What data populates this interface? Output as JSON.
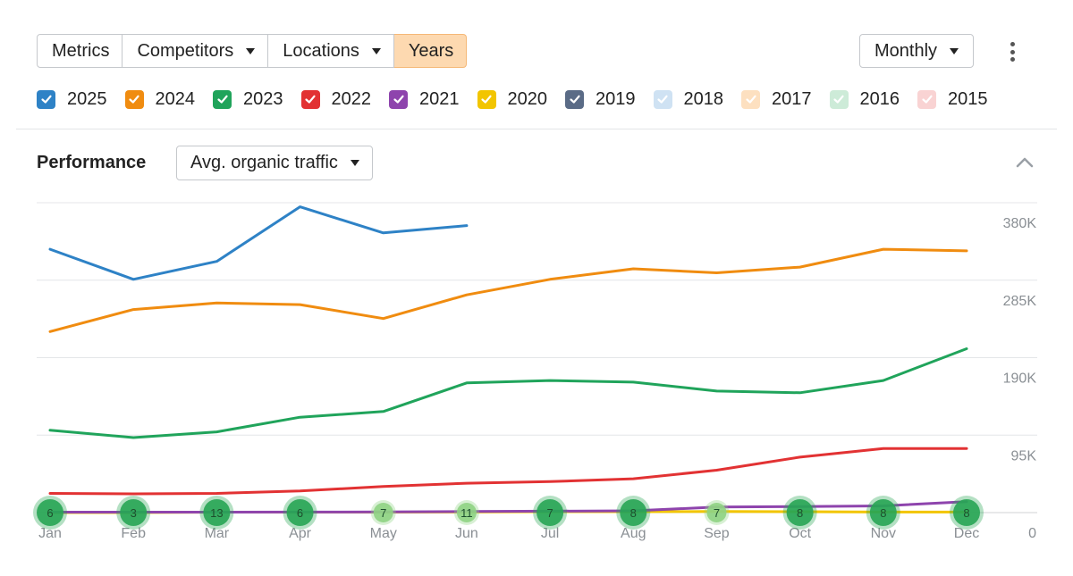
{
  "toolbar": {
    "tabs": [
      {
        "label": "Metrics",
        "dropdown": false,
        "active": false
      },
      {
        "label": "Competitors",
        "dropdown": true,
        "active": false
      },
      {
        "label": "Locations",
        "dropdown": true,
        "active": false
      },
      {
        "label": "Years",
        "dropdown": false,
        "active": true
      }
    ],
    "granularity": "Monthly",
    "more_icon": "kebab-menu-icon"
  },
  "legend": [
    {
      "label": "2025",
      "color": "#2e82c6",
      "checked": true,
      "muted": false
    },
    {
      "label": "2024",
      "color": "#f08c10",
      "checked": true,
      "muted": false
    },
    {
      "label": "2023",
      "color": "#20a45b",
      "checked": true,
      "muted": false
    },
    {
      "label": "2022",
      "color": "#e23233",
      "checked": true,
      "muted": false
    },
    {
      "label": "2021",
      "color": "#8e44ad",
      "checked": true,
      "muted": false
    },
    {
      "label": "2020",
      "color": "#f2c500",
      "checked": true,
      "muted": false
    },
    {
      "label": "2019",
      "color": "#5a6b86",
      "checked": true,
      "muted": false
    },
    {
      "label": "2018",
      "color": "#cfe2f3",
      "checked": false,
      "muted": true
    },
    {
      "label": "2017",
      "color": "#fde0c0",
      "checked": false,
      "muted": true
    },
    {
      "label": "2016",
      "color": "#cdebd8",
      "checked": false,
      "muted": true
    },
    {
      "label": "2015",
      "color": "#f9d3d3",
      "checked": false,
      "muted": true
    }
  ],
  "performance": {
    "title": "Performance",
    "metric": "Avg. organic traffic",
    "collapse_icon": "chevron-up-icon"
  },
  "chart_data": {
    "type": "line",
    "categories": [
      "Jan",
      "Feb",
      "Mar",
      "Apr",
      "May",
      "Jun",
      "Jul",
      "Aug",
      "Sep",
      "Oct",
      "Nov",
      "Dec"
    ],
    "y_ticks": [
      {
        "value": 0,
        "label": "0"
      },
      {
        "value": 95000,
        "label": "95K"
      },
      {
        "value": 190000,
        "label": "190K"
      },
      {
        "value": 285000,
        "label": "285K"
      },
      {
        "value": 380000,
        "label": "380K"
      }
    ],
    "ylim": [
      0,
      380000
    ],
    "grid": true,
    "series": [
      {
        "name": "2025",
        "color": "#2e82c6",
        "values": [
          323000,
          286000,
          308000,
          375000,
          343000,
          352000,
          null,
          null,
          null,
          null,
          null,
          null
        ]
      },
      {
        "name": "2024",
        "color": "#f08c10",
        "values": [
          222000,
          249000,
          257000,
          255000,
          238000,
          267000,
          286000,
          299000,
          294000,
          301000,
          323000,
          321000
        ]
      },
      {
        "name": "2023",
        "color": "#20a45b",
        "values": [
          101000,
          92000,
          99000,
          117000,
          124000,
          159000,
          162000,
          160000,
          149000,
          147000,
          162000,
          201000
        ]
      },
      {
        "name": "2022",
        "color": "#e23233",
        "values": [
          23500,
          23000,
          23500,
          26500,
          32000,
          36000,
          38000,
          41500,
          52000,
          68000,
          78500,
          78500
        ]
      },
      {
        "name": "2021",
        "color": "#8e44ad",
        "values": [
          600,
          600,
          600,
          700,
          800,
          1300,
          1700,
          2200,
          6800,
          7500,
          8200,
          13500
        ]
      },
      {
        "name": "2020",
        "color": "#f2c500",
        "values": [
          0,
          0,
          500,
          500,
          600,
          700,
          1100,
          1100,
          1400,
          1100,
          700,
          700
        ]
      }
    ],
    "annotations": [
      {
        "x": "Jan",
        "count": "6",
        "color": "#27a554"
      },
      {
        "x": "Feb",
        "count": "3",
        "color": "#27a554"
      },
      {
        "x": "Mar",
        "count": "13",
        "color": "#27a554"
      },
      {
        "x": "Apr",
        "count": "6",
        "color": "#27a554"
      },
      {
        "x": "May",
        "count": "7",
        "color": "#8fd383"
      },
      {
        "x": "Jun",
        "count": "11",
        "color": "#8fd383"
      },
      {
        "x": "Jul",
        "count": "7",
        "color": "#27a554"
      },
      {
        "x": "Aug",
        "count": "8",
        "color": "#27a554"
      },
      {
        "x": "Sep",
        "count": "7",
        "color": "#8fd383"
      },
      {
        "x": "Oct",
        "count": "8",
        "color": "#27a554"
      },
      {
        "x": "Nov",
        "count": "8",
        "color": "#27a554"
      },
      {
        "x": "Dec",
        "count": "8",
        "color": "#27a554"
      }
    ]
  }
}
